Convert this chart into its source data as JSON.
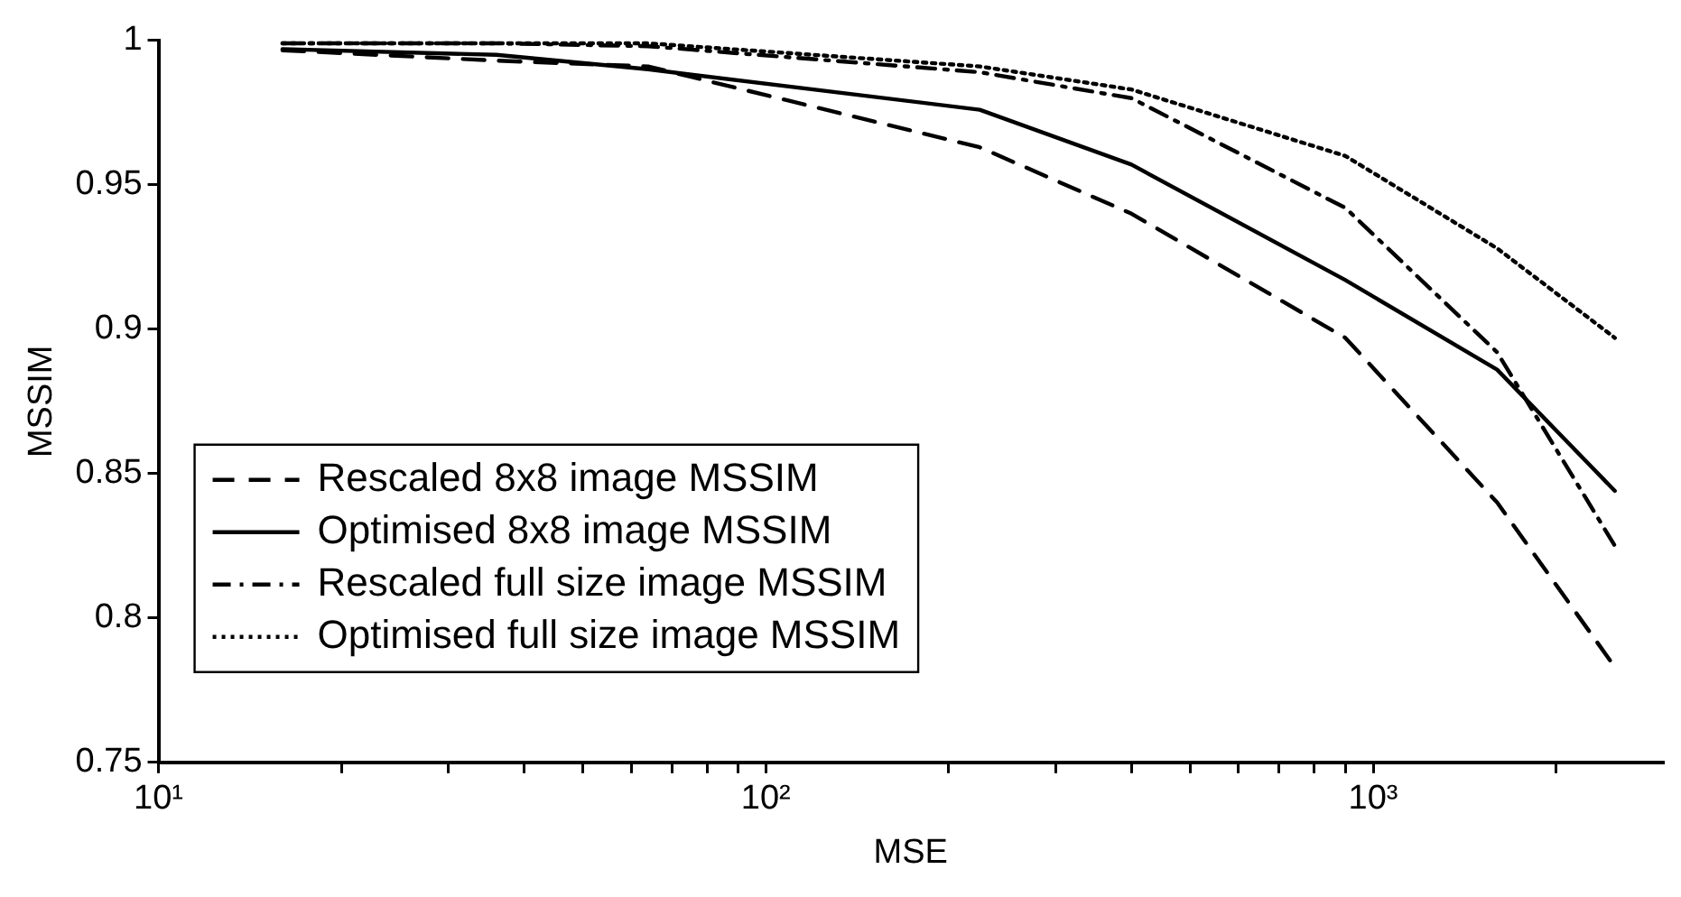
{
  "chart_data": {
    "type": "line",
    "xlabel": "MSE",
    "ylabel": "MSSIM",
    "x": [
      16,
      36,
      64,
      225,
      400,
      900,
      1600,
      2500
    ],
    "series": [
      {
        "name": "Rescaled 8x8 image MSSIM",
        "color": "#000000",
        "line_style": "dashed",
        "values": [
          0.9966,
          0.993,
          0.991,
          0.963,
          0.94,
          0.897,
          0.84,
          0.783
        ]
      },
      {
        "name": "Optimised 8x8 image MSSIM",
        "color": "#000000",
        "line_style": "solid",
        "values": [
          0.997,
          0.995,
          0.99,
          0.976,
          0.957,
          0.917,
          0.886,
          0.844
        ]
      },
      {
        "name": "Rescaled full size image MSSIM",
        "color": "#000000",
        "line_style": "dashdot",
        "values": [
          0.999,
          0.999,
          0.998,
          0.989,
          0.98,
          0.942,
          0.892,
          0.825
        ]
      },
      {
        "name": "Optimised full size image MSSIM",
        "color": "#000000",
        "line_style": "dotted",
        "values": [
          0.999,
          0.999,
          0.999,
          0.991,
          0.983,
          0.96,
          0.928,
          0.897
        ]
      }
    ],
    "log": "x",
    "xlim": [
      10,
      3000
    ],
    "xticks": [
      {
        "value": 10,
        "label": "10¹"
      },
      {
        "value": 20,
        "label": null
      },
      {
        "value": 30,
        "label": null
      },
      {
        "value": 40,
        "label": null
      },
      {
        "value": 50,
        "label": null
      },
      {
        "value": 60,
        "label": null
      },
      {
        "value": 70,
        "label": null
      },
      {
        "value": 80,
        "label": null
      },
      {
        "value": 90,
        "label": null
      },
      {
        "value": 100,
        "label": "10²"
      },
      {
        "value": 200,
        "label": null
      },
      {
        "value": 300,
        "label": null
      },
      {
        "value": 400,
        "label": null
      },
      {
        "value": 500,
        "label": null
      },
      {
        "value": 600,
        "label": null
      },
      {
        "value": 700,
        "label": null
      },
      {
        "value": 800,
        "label": null
      },
      {
        "value": 900,
        "label": null
      },
      {
        "value": 1000,
        "label": "10³"
      },
      {
        "value": 2000,
        "label": null
      }
    ],
    "ylim": [
      0.75,
      1
    ],
    "yticks": [
      0.75,
      0.8,
      0.85,
      0.9,
      0.95,
      1
    ],
    "grid": false,
    "legend": "bottom left",
    "marker": "none"
  }
}
